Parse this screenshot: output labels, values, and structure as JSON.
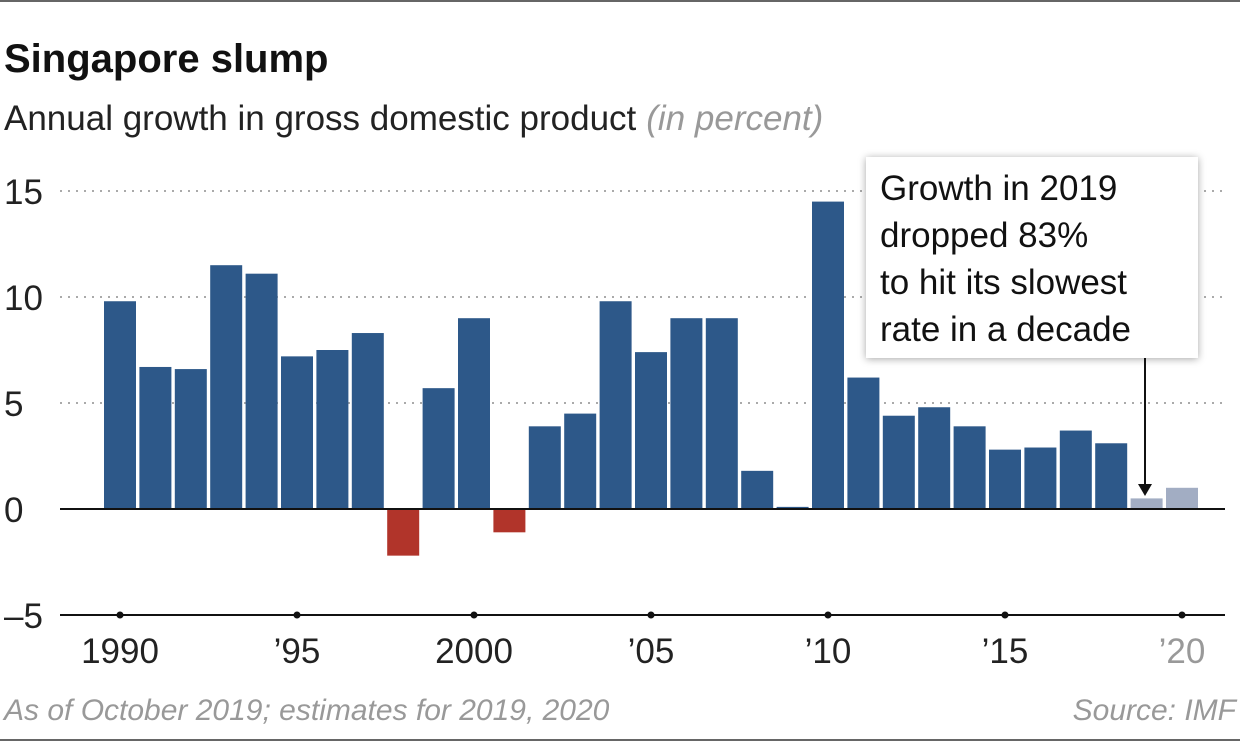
{
  "chart_data": {
    "type": "bar",
    "title": "Singapore slump",
    "subtitle": "Annual growth in gross domestic product",
    "subtitle_unit": "(in percent)",
    "x": [
      1990,
      1991,
      1992,
      1993,
      1994,
      1995,
      1996,
      1997,
      1998,
      1999,
      2000,
      2001,
      2002,
      2003,
      2004,
      2005,
      2006,
      2007,
      2008,
      2009,
      2010,
      2011,
      2012,
      2013,
      2014,
      2015,
      2016,
      2017,
      2018,
      2019,
      2020
    ],
    "values": [
      9.8,
      6.7,
      6.6,
      11.5,
      11.1,
      7.2,
      7.5,
      8.3,
      -2.2,
      5.7,
      9.0,
      -1.1,
      3.9,
      4.5,
      9.8,
      7.4,
      9.0,
      9.0,
      1.8,
      0.1,
      14.5,
      6.2,
      4.4,
      4.8,
      3.9,
      2.8,
      2.9,
      3.7,
      3.1,
      0.5,
      1.0
    ],
    "estimate_years": [
      2019,
      2020
    ],
    "ylim": [
      -5,
      16
    ],
    "yticks": [
      {
        "v": 15,
        "label": "15"
      },
      {
        "v": 10,
        "label": "10"
      },
      {
        "v": 5,
        "label": "5"
      },
      {
        "v": 0,
        "label": "0"
      },
      {
        "v": -5,
        "label": "–5"
      }
    ],
    "xticks": [
      {
        "v": 1990,
        "label": "1990"
      },
      {
        "v": 1995,
        "label": "’95"
      },
      {
        "v": 2000,
        "label": "2000"
      },
      {
        "v": 2005,
        "label": "’05"
      },
      {
        "v": 2010,
        "label": "’10"
      },
      {
        "v": 2015,
        "label": "’15"
      },
      {
        "v": 2020,
        "label": "’20"
      }
    ],
    "annotation": [
      "Growth in 2019",
      "dropped 83%",
      "to hit its slowest",
      "rate in a decade"
    ],
    "colors": {
      "positive": "#2d5889",
      "negative": "#b1342a",
      "estimate": "#a2adc3"
    },
    "grid": true
  },
  "footer": {
    "note": "As of October 2019; estimates for 2019, 2020",
    "source": "Source: IMF"
  }
}
